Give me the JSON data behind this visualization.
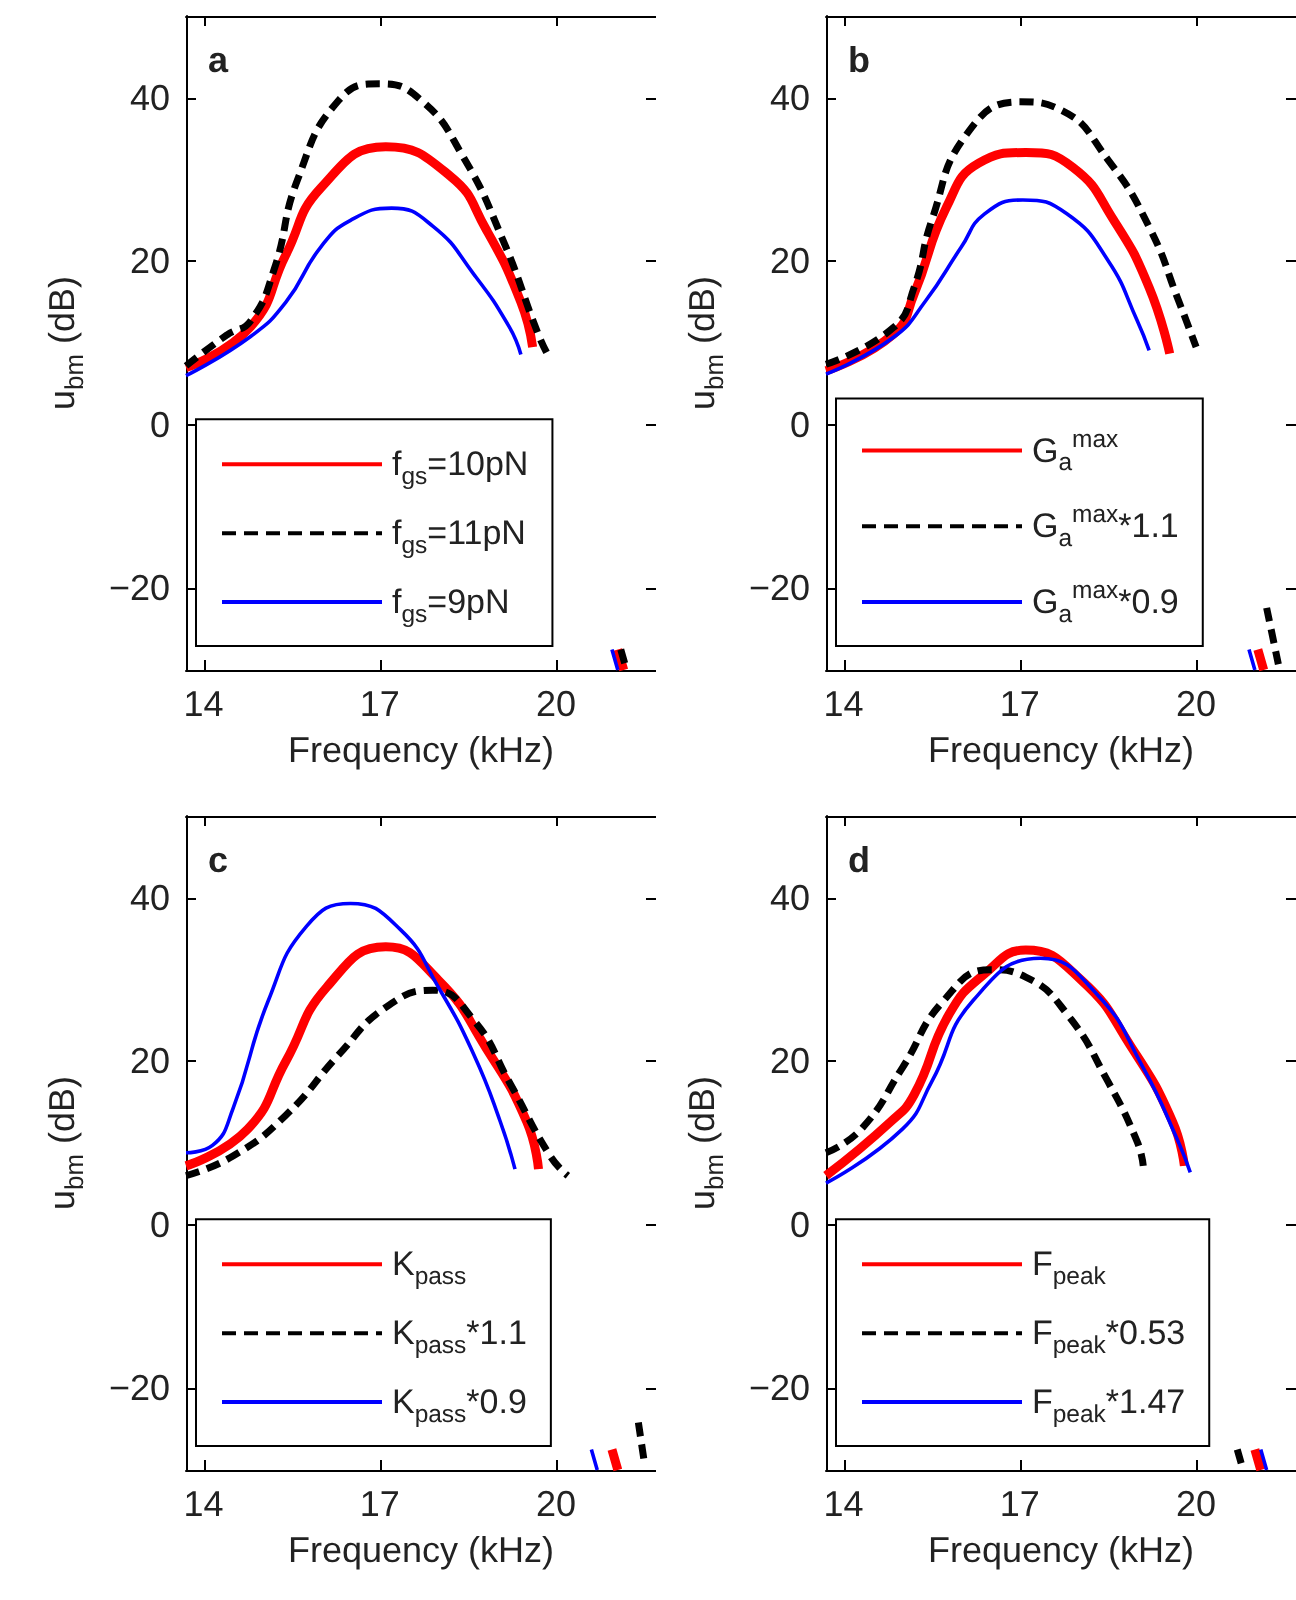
{
  "chart_data": [
    {
      "type": "line",
      "title": "a",
      "xlabel": "Frequency (kHz)",
      "ylabel": "u$_{bm}$ (dB)",
      "xlim": [
        13.7,
        21.7
      ],
      "ylim": [
        -30,
        50
      ],
      "xticks": [
        14,
        17,
        20
      ],
      "yticks": [
        -20,
        0,
        20,
        40
      ],
      "grid": false,
      "legend": "bottom left",
      "marker": "none",
      "series": [
        {
          "name": "f$_{gs}$=10pN",
          "color": "#ff0000",
          "line_style": "solid",
          "x": [
            13.7,
            14.8,
            15.4,
            16.0,
            17.1,
            18.2,
            18.8,
            19.4,
            19.6,
            20.3,
            21.05,
            21.15
          ],
          "values": [
            7,
            12,
            20.8,
            29,
            34,
            30.4,
            24,
            15,
            9.5,
            null,
            -27.5,
            -30
          ]
        },
        {
          "name": "f$_{gs}$=11pN",
          "color": "#000000",
          "line_style": "dashed",
          "x": [
            13.7,
            14.4,
            14.8,
            15.2,
            15.6,
            16.3,
            17.0,
            17.7,
            18.4,
            19.1,
            19.7,
            19.9,
            20.5,
            21.1,
            21.2
          ],
          "values": [
            7.2,
            11,
            12.7,
            19,
            30,
            39.7,
            41.7,
            39.7,
            33,
            22.5,
            11,
            8,
            null,
            -27.5,
            -30
          ]
        },
        {
          "name": "f$_{gs}$=9pN",
          "color": "#0000ff",
          "line_style": "solid",
          "x": [
            13.7,
            14.8,
            15.4,
            16.0,
            16.5,
            17.2,
            17.9,
            18.6,
            19.2,
            19.4,
            20.2,
            20.95,
            21.05
          ],
          "values": [
            6,
            10.8,
            15,
            21.8,
            25,
            26.5,
            24.3,
            18.4,
            12,
            8.6,
            null,
            -27.5,
            -30
          ]
        }
      ]
    },
    {
      "type": "line",
      "title": "b",
      "xlabel": "Frequency (kHz)",
      "ylabel": "u$_{bm}$ (dB)",
      "xlim": [
        13.7,
        21.7
      ],
      "ylim": [
        -30,
        50
      ],
      "xticks": [
        14,
        17,
        20
      ],
      "yticks": [
        -20,
        0,
        20,
        40
      ],
      "grid": false,
      "legend": "bottom left",
      "marker": "none",
      "series": [
        {
          "name": "G$_{a}$$^{max}$",
          "color": "#ff0000",
          "line_style": "solid",
          "x": [
            13.7,
            14.85,
            15.2,
            15.75,
            16.3,
            17.1,
            17.9,
            18.6,
            19.2,
            19.55,
            20.3,
            21.05,
            21.15
          ],
          "values": [
            6.6,
            11.1,
            16,
            26.6,
            32,
            33.3,
            31.5,
            25,
            16.8,
            8.7,
            null,
            -27.5,
            -30
          ]
        },
        {
          "name": "G$_{a}$$^{max}$*1.1",
          "color": "#000000",
          "line_style": "dashed",
          "x": [
            13.7,
            14.85,
            15.2,
            15.5,
            16.1,
            17.0,
            17.7,
            18.5,
            19.2,
            19.7,
            20.0,
            20.6,
            21.2,
            21.4
          ],
          "values": [
            7.4,
            11.9,
            16.8,
            25,
            35.6,
            39.5,
            38.5,
            32.4,
            24.2,
            15.2,
            9.5,
            null,
            -22.4,
            -29.3
          ]
        },
        {
          "name": "G$_{a}$$^{max}$*0.9",
          "color": "#0000ff",
          "line_style": "solid",
          "x": [
            13.7,
            14.85,
            15.4,
            16.0,
            16.4,
            17.05,
            17.8,
            18.5,
            19.0,
            19.2,
            20.0,
            20.9,
            21.0
          ],
          "values": [
            6.2,
            10.7,
            15.2,
            21.7,
            25.8,
            27.5,
            25.8,
            20.1,
            12.7,
            9.1,
            null,
            -27.5,
            -30
          ]
        }
      ]
    },
    {
      "type": "line",
      "title": "c",
      "xlabel": "Frequency (kHz)",
      "ylabel": "u$_{bm}$ (dB)",
      "xlim": [
        13.7,
        21.7
      ],
      "ylim": [
        -30,
        50
      ],
      "xticks": [
        14,
        17,
        20
      ],
      "yticks": [
        -20,
        0,
        20,
        40
      ],
      "grid": false,
      "legend": "bottom left",
      "marker": "none",
      "series": [
        {
          "name": "K$_{pass}$",
          "color": "#ff0000",
          "line_style": "solid",
          "x": [
            13.7,
            14.75,
            15.4,
            16.1,
            17.1,
            18.0,
            18.8,
            19.5,
            19.7,
            20.3,
            20.95,
            21.05
          ],
          "values": [
            7.2,
            11.7,
            20,
            29.1,
            34,
            29.9,
            21.7,
            12.6,
            6.8,
            null,
            -27.5,
            -30
          ]
        },
        {
          "name": "K$_{pass}$*1.1",
          "color": "#000000",
          "line_style": "dashed",
          "x": [
            13.7,
            14.5,
            15.4,
            16.3,
            17.1,
            17.9,
            18.6,
            19.2,
            19.9,
            20.2,
            20.8,
            21.4,
            21.5
          ],
          "values": [
            6,
            8.4,
            13.4,
            20.8,
            26.6,
            28.7,
            25,
            17.5,
            8.4,
            6,
            null,
            -24.2,
            -29
          ]
        },
        {
          "name": "K$_{pass}$*0.9",
          "color": "#0000ff",
          "line_style": "solid",
          "x": [
            13.7,
            14.15,
            14.5,
            15.1,
            15.75,
            16.5,
            17.35,
            18.0,
            18.6,
            19.05,
            19.3,
            20.0,
            20.6,
            20.7
          ],
          "values": [
            8.8,
            9.7,
            14.2,
            27.4,
            36.5,
            39.3,
            36.1,
            29,
            20.8,
            12.6,
            6.8,
            null,
            -27.5,
            -30
          ]
        }
      ]
    },
    {
      "type": "line",
      "title": "d",
      "xlabel": "Frequency (kHz)",
      "ylabel": "u$_{bm}$ (dB)",
      "xlim": [
        13.7,
        21.7
      ],
      "ylim": [
        -30,
        50
      ],
      "xticks": [
        14,
        17,
        20
      ],
      "yticks": [
        -20,
        0,
        20,
        40
      ],
      "grid": false,
      "legend": "bottom left",
      "marker": "none",
      "series": [
        {
          "name": "F$_{peak}$",
          "color": "#ff0000",
          "line_style": "solid",
          "x": [
            13.7,
            14.8,
            15.2,
            15.8,
            16.4,
            17.1,
            18.05,
            18.9,
            19.6,
            19.8,
            20.4,
            21.0,
            21.1
          ],
          "values": [
            6,
            12.6,
            15.9,
            25.8,
            30.7,
            33.6,
            29.9,
            21.7,
            12.6,
            7.2,
            null,
            -27.5,
            -30
          ]
        },
        {
          "name": "F$_{peak}$*0.53",
          "color": "#000000",
          "line_style": "dashed",
          "x": [
            13.7,
            14.3,
            15.0,
            15.7,
            16.5,
            17.1,
            17.8,
            18.5,
            19.0,
            19.1,
            20.0,
            20.7,
            20.8
          ],
          "values": [
            8.8,
            11.7,
            19.2,
            27.4,
            31.2,
            30.3,
            25.8,
            17.5,
            10.1,
            7.2,
            null,
            -27.5,
            -30
          ]
        },
        {
          "name": "F$_{peak}$*1.47",
          "color": "#0000ff",
          "line_style": "solid",
          "x": [
            13.7,
            15.0,
            15.5,
            16.2,
            17.35,
            18.3,
            19.1,
            19.7,
            19.9,
            20.5,
            21.1,
            21.2
          ],
          "values": [
            5.1,
            11.7,
            17.5,
            27.4,
            32.6,
            28.3,
            19.2,
            10.1,
            6.4,
            null,
            -27.5,
            -30
          ]
        }
      ]
    }
  ]
}
